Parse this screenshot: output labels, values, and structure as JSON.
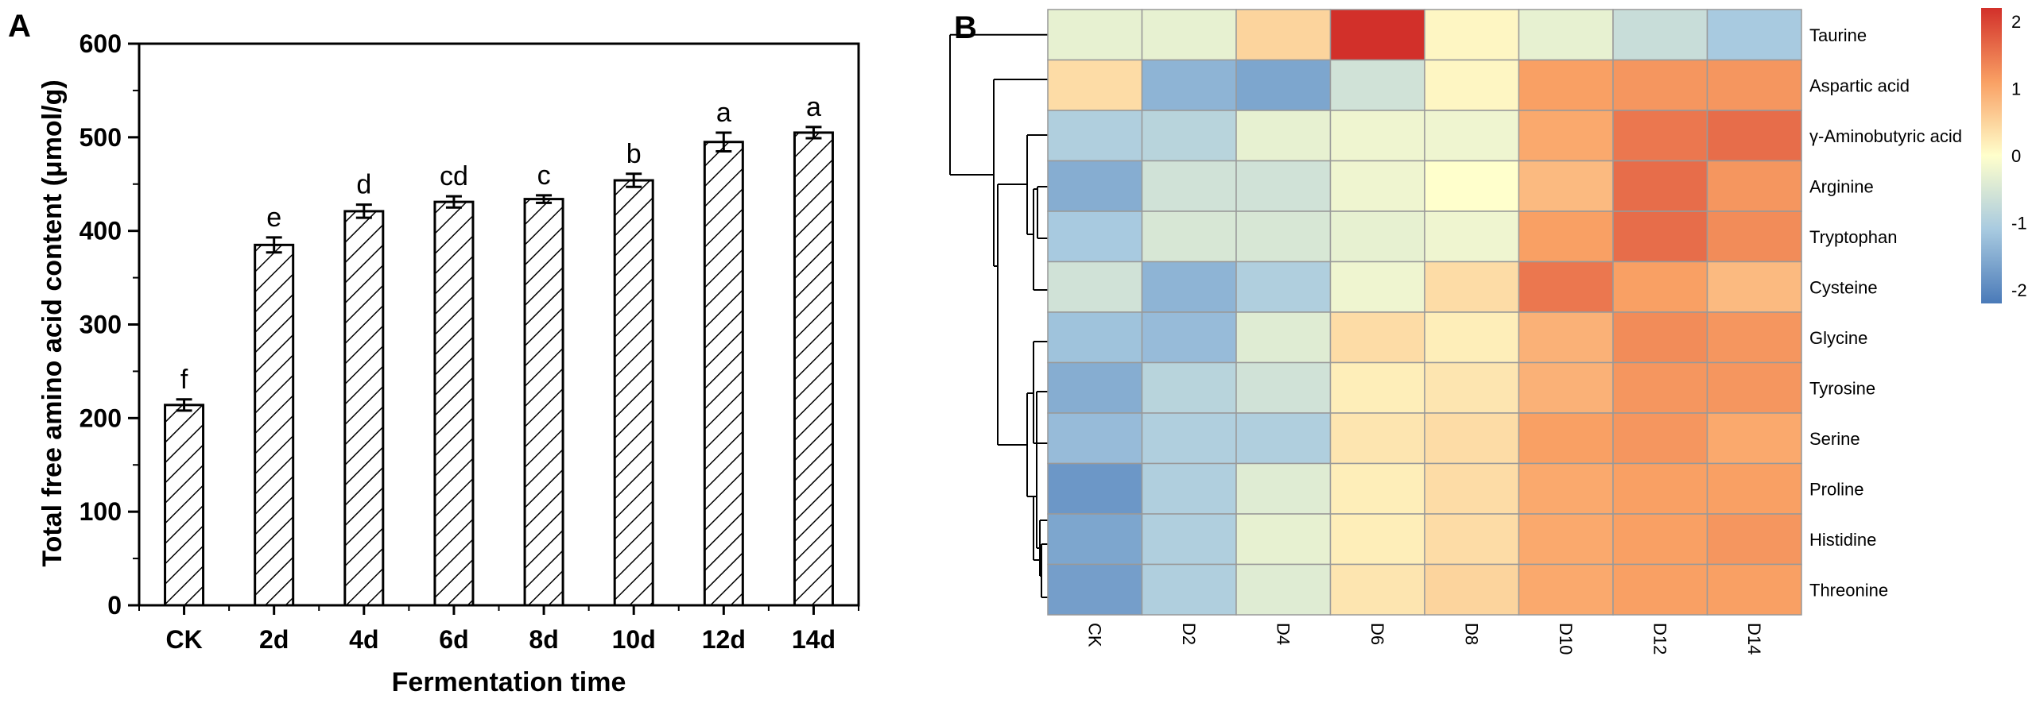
{
  "chart_data": [
    {
      "panel_label": "A",
      "type": "bar",
      "categories": [
        "CK",
        "2d",
        "4d",
        "6d",
        "8d",
        "10d",
        "12d",
        "14d"
      ],
      "values": [
        214,
        385,
        421,
        431,
        434,
        454,
        495,
        505
      ],
      "errors": [
        6,
        8,
        7,
        6,
        4,
        7,
        10,
        6
      ],
      "significance_letters": [
        "f",
        "e",
        "d",
        "cd",
        "c",
        "b",
        "a",
        "a"
      ],
      "xlabel": "Fermentation time",
      "ylabel": "Total free amino acid content (μmol/g)",
      "ylim": [
        0,
        600
      ],
      "yticks": [
        0,
        100,
        200,
        300,
        400,
        500,
        600
      ],
      "bar_fill": "diagonal-hatch",
      "bar_color": "#000000",
      "grid": false
    },
    {
      "panel_label": "B",
      "type": "heatmap",
      "columns": [
        "CK",
        "D2",
        "D4",
        "D6",
        "D8",
        "D10",
        "D12",
        "D14"
      ],
      "rows": [
        "Taurine",
        "Aspartic acid",
        "γ-Aminobutyric acid",
        "Arginine",
        "Tryptophan",
        "Cysteine",
        "Glycine",
        "Tyrosine",
        "Serine",
        "Proline",
        "Histidine",
        "Threonine"
      ],
      "values": [
        [
          -0.3,
          -0.3,
          0.5,
          2.2,
          0.1,
          -0.3,
          -0.7,
          -1.1
        ],
        [
          0.4,
          -1.4,
          -1.6,
          -0.6,
          0.1,
          1.1,
          1.2,
          1.2
        ],
        [
          -1.0,
          -0.9,
          -0.3,
          -0.2,
          -0.2,
          1.0,
          1.5,
          1.6
        ],
        [
          -1.5,
          -0.6,
          -0.6,
          -0.2,
          0.0,
          0.8,
          1.6,
          1.2
        ],
        [
          -1.1,
          -0.5,
          -0.5,
          -0.3,
          -0.2,
          1.1,
          1.6,
          1.3
        ],
        [
          -0.6,
          -1.4,
          -1.0,
          -0.2,
          0.4,
          1.5,
          1.1,
          0.8
        ],
        [
          -1.2,
          -1.3,
          -0.4,
          0.4,
          0.2,
          0.9,
          1.3,
          1.2
        ],
        [
          -1.5,
          -0.9,
          -0.6,
          0.2,
          0.3,
          0.9,
          1.2,
          1.2
        ],
        [
          -1.3,
          -1.0,
          -1.0,
          0.3,
          0.4,
          1.1,
          1.2,
          1.0
        ],
        [
          -1.8,
          -1.0,
          -0.4,
          0.2,
          0.4,
          1.0,
          1.1,
          1.1
        ],
        [
          -1.6,
          -1.0,
          -0.3,
          0.2,
          0.4,
          1.0,
          1.1,
          1.2
        ],
        [
          -1.7,
          -1.0,
          -0.4,
          0.3,
          0.5,
          1.0,
          1.1,
          1.1
        ]
      ],
      "color_scale": {
        "min": -2.2,
        "max": 2.2,
        "ticks": [
          -2,
          -1,
          0,
          1,
          2
        ],
        "stops": [
          "#4a7ab8",
          "#ffffcc",
          "#d2302a"
        ]
      },
      "row_dendrogram": true,
      "cell_border_color": "#999999"
    }
  ]
}
